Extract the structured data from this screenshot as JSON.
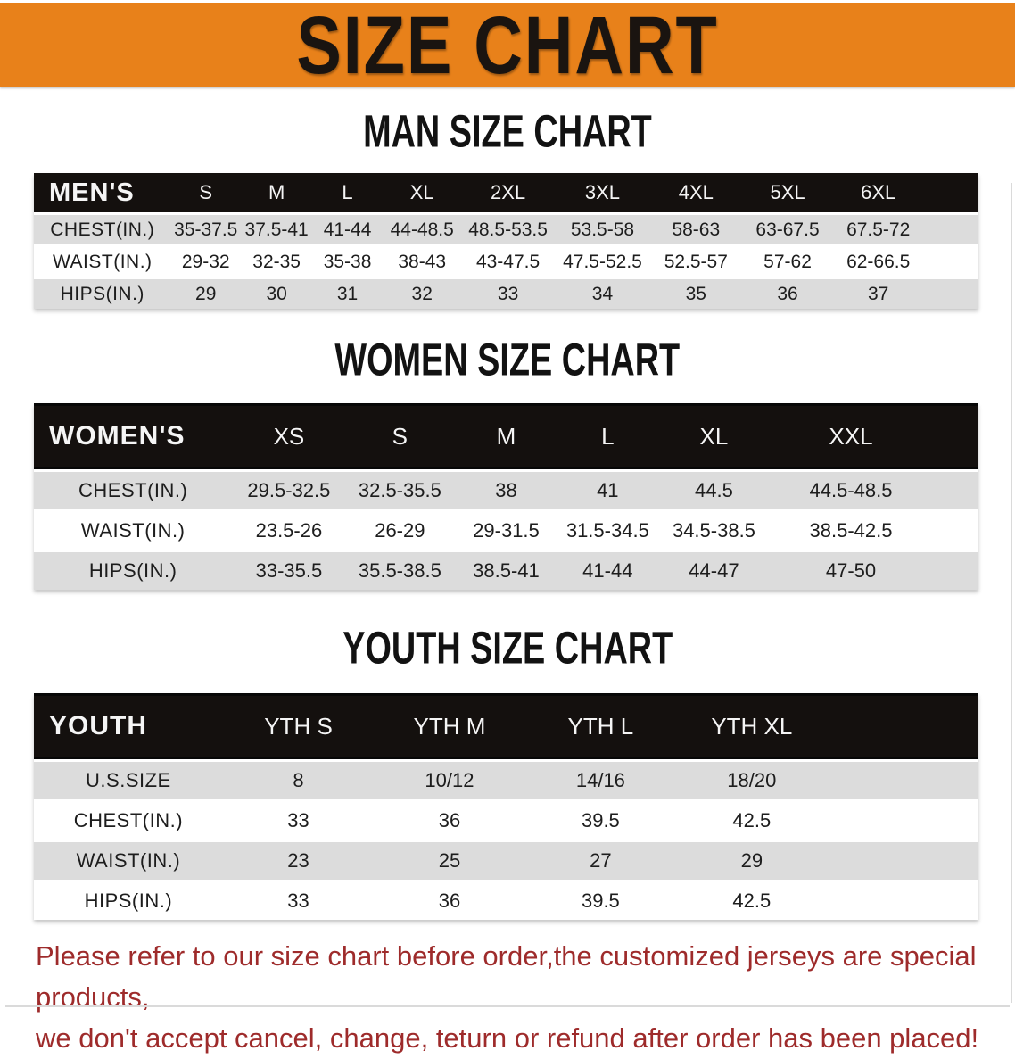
{
  "banner": {
    "title": "SIZE CHART"
  },
  "sections": [
    {
      "heading": "MAN SIZE CHART",
      "table_label": "MEN'S",
      "columns": [
        "S",
        "M",
        "L",
        "XL",
        "2XL",
        "3XL",
        "4XL",
        "5XL",
        "6XL"
      ],
      "rows": [
        {
          "label": "CHEST(IN.)",
          "values": [
            "35-37.5",
            "37.5-41",
            "41-44",
            "44-48.5",
            "48.5-53.5",
            "53.5-58",
            "58-63",
            "63-67.5",
            "67.5-72"
          ]
        },
        {
          "label": "WAIST(IN.)",
          "values": [
            "29-32",
            "32-35",
            "35-38",
            "38-43",
            "43-47.5",
            "47.5-52.5",
            "52.5-57",
            "57-62",
            "62-66.5"
          ]
        },
        {
          "label": "HIPS(IN.)",
          "values": [
            "29",
            "30",
            "31",
            "32",
            "33",
            "34",
            "35",
            "36",
            "37"
          ]
        }
      ]
    },
    {
      "heading": "WOMEN SIZE CHART",
      "table_label": "WOMEN'S",
      "columns": [
        "XS",
        "S",
        "M",
        "L",
        "XL",
        "XXL"
      ],
      "rows": [
        {
          "label": "CHEST(IN.)",
          "values": [
            "29.5-32.5",
            "32.5-35.5",
            "38",
            "41",
            "44.5",
            "44.5-48.5"
          ]
        },
        {
          "label": "WAIST(IN.)",
          "values": [
            "23.5-26",
            "26-29",
            "29-31.5",
            "31.5-34.5",
            "34.5-38.5",
            "38.5-42.5"
          ]
        },
        {
          "label": "HIPS(IN.)",
          "values": [
            "33-35.5",
            "35.5-38.5",
            "38.5-41",
            "41-44",
            "44-47",
            "47-50"
          ]
        }
      ]
    },
    {
      "heading": "YOUTH SIZE CHART",
      "table_label": "YOUTH",
      "columns": [
        "YTH S",
        "YTH M",
        "YTH L",
        "YTH XL"
      ],
      "rows": [
        {
          "label": "U.S.SIZE",
          "values": [
            "8",
            "10/12",
            "14/16",
            "18/20"
          ]
        },
        {
          "label": "CHEST(IN.)",
          "values": [
            "33",
            "36",
            "39.5",
            "42.5"
          ]
        },
        {
          "label": "WAIST(IN.)",
          "values": [
            "23",
            "25",
            "27",
            "29"
          ]
        },
        {
          "label": "HIPS(IN.)",
          "values": [
            "33",
            "36",
            "39.5",
            "42.5"
          ]
        }
      ]
    }
  ],
  "disclaimer": {
    "line1": "Please refer to our size chart before order,the customized jerseys are special products,",
    "line2": "we don't accept cancel, change, teturn or refund after order has been placed!"
  },
  "colors": {
    "banner_bg": "#E8811A",
    "header_bar": "#141414",
    "row_stripe": "#DCDCDC",
    "disclaimer_text": "#9E2B2B"
  }
}
